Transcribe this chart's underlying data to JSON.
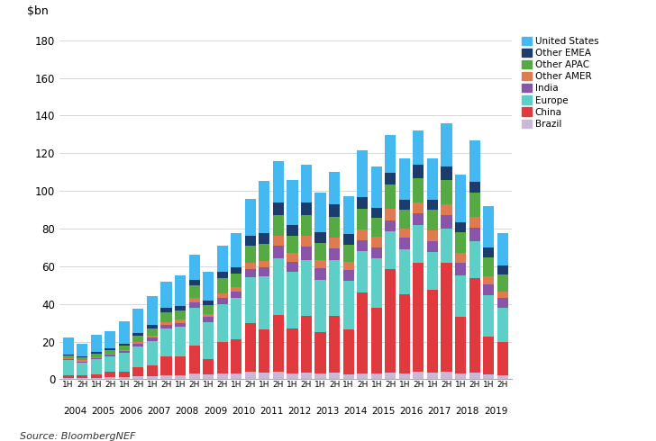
{
  "year_labels": [
    "2004",
    "2005",
    "2006",
    "2007",
    "2008",
    "2009",
    "2010",
    "2011",
    "2012",
    "2013",
    "2014",
    "2015",
    "2016",
    "2017",
    "2018",
    "2019"
  ],
  "half_labels": [
    "1H",
    "2H",
    "1H",
    "2H",
    "1H",
    "2H",
    "1H",
    "2H",
    "1H",
    "2H",
    "1H",
    "2H",
    "1H",
    "2H",
    "1H",
    "2H",
    "1H",
    "2H",
    "1H",
    "2H",
    "1H",
    "2H",
    "1H",
    "2H",
    "1H",
    "2H",
    "1H",
    "2H",
    "1H",
    "2H",
    "1H",
    "2H"
  ],
  "series": {
    "Brazil": [
      0.5,
      0.5,
      0.5,
      1.0,
      1.0,
      1.5,
      1.5,
      2.0,
      2.0,
      3.0,
      2.5,
      3.0,
      3.0,
      4.0,
      3.5,
      4.0,
      3.0,
      3.5,
      3.0,
      3.5,
      2.5,
      3.0,
      3.0,
      3.5,
      3.0,
      4.0,
      3.5,
      4.0,
      3.0,
      3.5,
      2.5,
      2.0
    ],
    "China": [
      1.5,
      1.5,
      2.0,
      3.0,
      3.0,
      5.0,
      6.0,
      10.0,
      10.0,
      15.0,
      8.0,
      17.0,
      18.0,
      26.0,
      23.0,
      30.0,
      24.0,
      30.0,
      22.0,
      30.0,
      24.0,
      43.0,
      35.0,
      55.0,
      42.0,
      58.0,
      44.0,
      58.0,
      30.0,
      50.0,
      20.0,
      18.0
    ],
    "Europe": [
      8.0,
      7.0,
      8.0,
      8.0,
      10.0,
      11.0,
      13.0,
      15.0,
      16.0,
      20.0,
      20.0,
      20.0,
      22.0,
      24.0,
      28.0,
      30.0,
      30.0,
      30.0,
      28.0,
      30.0,
      26.0,
      22.0,
      26.0,
      20.0,
      24.0,
      20.0,
      20.0,
      18.0,
      22.0,
      20.0,
      22.0,
      18.0
    ],
    "India": [
      0.5,
      0.5,
      0.5,
      1.0,
      1.0,
      1.5,
      1.5,
      2.0,
      2.0,
      3.0,
      2.5,
      3.0,
      3.5,
      4.5,
      5.0,
      7.0,
      5.5,
      7.0,
      6.0,
      6.0,
      5.5,
      6.0,
      6.0,
      6.0,
      6.0,
      6.0,
      6.0,
      7.0,
      7.0,
      7.0,
      6.0,
      5.0
    ],
    "Other AMER": [
      0.5,
      0.5,
      0.5,
      0.5,
      0.5,
      1.0,
      1.0,
      1.5,
      1.5,
      2.0,
      1.5,
      2.5,
      2.5,
      3.5,
      3.5,
      5.0,
      4.5,
      5.5,
      4.5,
      5.5,
      4.5,
      5.5,
      5.5,
      6.0,
      5.0,
      6.0,
      5.5,
      6.0,
      5.0,
      5.5,
      4.0,
      3.5
    ],
    "Other APAC": [
      1.5,
      1.5,
      2.0,
      2.0,
      2.5,
      3.0,
      4.0,
      5.0,
      5.0,
      7.0,
      5.0,
      8.0,
      7.0,
      9.0,
      9.0,
      11.0,
      9.0,
      11.0,
      9.0,
      11.0,
      9.0,
      11.0,
      10.0,
      13.0,
      10.0,
      13.0,
      11.0,
      13.0,
      11.0,
      13.0,
      10.0,
      9.0
    ],
    "Other EMEA": [
      0.5,
      0.5,
      1.0,
      1.0,
      1.0,
      1.5,
      2.0,
      2.5,
      2.5,
      3.0,
      2.5,
      3.5,
      3.5,
      5.0,
      5.5,
      7.0,
      6.0,
      7.0,
      5.5,
      7.0,
      5.5,
      6.0,
      5.5,
      6.0,
      5.5,
      7.0,
      5.5,
      7.0,
      5.5,
      6.0,
      5.5,
      5.0
    ],
    "United States": [
      9.0,
      7.0,
      9.0,
      9.0,
      12.0,
      13.0,
      15.0,
      14.0,
      16.0,
      13.0,
      15.0,
      14.0,
      18.0,
      20.0,
      28.0,
      22.0,
      24.0,
      20.0,
      21.0,
      17.0,
      20.0,
      25.0,
      22.0,
      20.0,
      22.0,
      18.0,
      22.0,
      23.0,
      25.0,
      22.0,
      22.0,
      17.0
    ]
  },
  "colors": {
    "Brazil": "#c9b8d8",
    "China": "#e0393e",
    "Europe": "#5ecfc6",
    "India": "#8855aa",
    "Other AMER": "#e07b50",
    "Other APAC": "#55aa44",
    "Other EMEA": "#1a3d6e",
    "United States": "#44b8f0"
  },
  "series_order": [
    "Brazil",
    "China",
    "Europe",
    "India",
    "Other AMER",
    "Other APAC",
    "Other EMEA",
    "United States"
  ],
  "legend_order": [
    "United States",
    "Other EMEA",
    "Other APAC",
    "Other AMER",
    "India",
    "Europe",
    "China",
    "Brazil"
  ],
  "ylim": [
    0,
    185
  ],
  "yticks": [
    0,
    20,
    40,
    60,
    80,
    100,
    120,
    140,
    160,
    180
  ],
  "ylabel_text": "$bn",
  "source": "Source: BloombergNEF",
  "background_color": "#ffffff",
  "grid_color": "#c8c8c8"
}
